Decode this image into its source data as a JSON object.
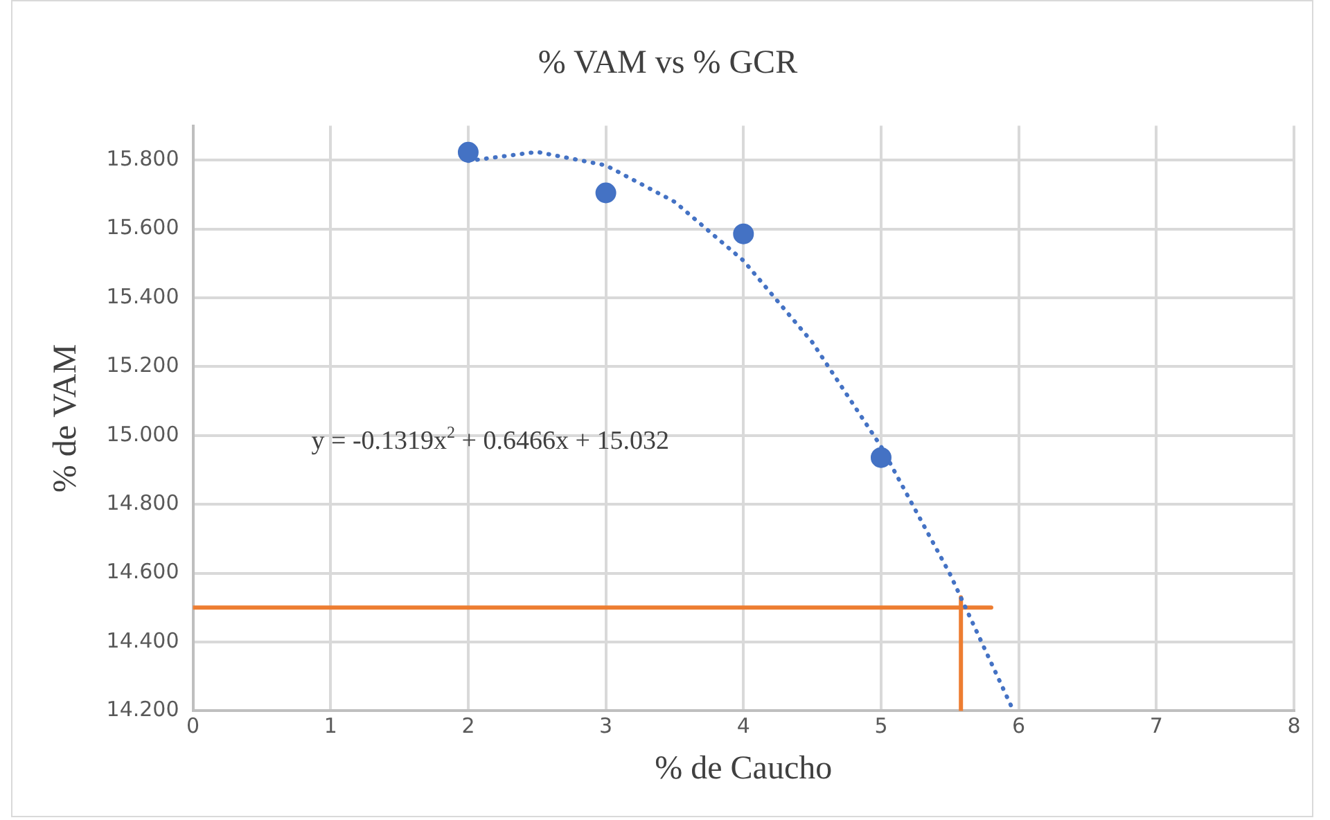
{
  "chart_data": {
    "type": "scatter",
    "title": "% VAM vs % GCR",
    "xlabel": "% de Caucho",
    "ylabel": "% de VAM",
    "xlim": [
      0,
      8
    ],
    "xticks": [
      0,
      1,
      2,
      3,
      4,
      5,
      6,
      7,
      8
    ],
    "ylim": [
      14.2,
      15.9
    ],
    "yticks": [
      {
        "value": 14.2,
        "label": "14.200"
      },
      {
        "value": 14.4,
        "label": "14.400"
      },
      {
        "value": 14.6,
        "label": "14.600"
      },
      {
        "value": 14.8,
        "label": "14.800"
      },
      {
        "value": 15.0,
        "label": "15.000"
      },
      {
        "value": 15.2,
        "label": "15.200"
      },
      {
        "value": 15.4,
        "label": "15.400"
      },
      {
        "value": 15.6,
        "label": "15.600"
      },
      {
        "value": 15.8,
        "label": "15.800"
      }
    ],
    "grid": true,
    "legend": false,
    "series": [
      {
        "color": "#4472c4",
        "marker": "circle",
        "x": [
          2,
          3,
          4,
          5
        ],
        "values": [
          15.823,
          15.705,
          15.586,
          14.936
        ]
      },
      {
        "type": "line",
        "color": "#4472c4",
        "marker": "none",
        "line_style": "dotted",
        "x": [
          2,
          2.5,
          3,
          3.5,
          4,
          4.5,
          5,
          5.5,
          5.95
        ],
        "values": [
          15.798,
          15.824,
          15.785,
          15.679,
          15.508,
          15.271,
          14.968,
          14.598,
          14.21
        ]
      },
      {
        "type": "line",
        "color": "#ed7d31",
        "marker": "none",
        "line_style": "solid",
        "x": [
          0,
          5.8
        ],
        "values": [
          14.5,
          14.5
        ]
      },
      {
        "type": "line",
        "color": "#ed7d31",
        "marker": "none",
        "line_style": "solid",
        "x": [
          5.58,
          5.58
        ],
        "values": [
          14.2,
          14.53
        ]
      }
    ],
    "annotations": [
      "y = -0.1319x$^{2}$ + 0.6466x + 15.032"
    ]
  }
}
